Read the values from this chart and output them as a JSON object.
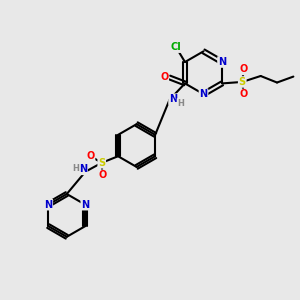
{
  "bg_color": "#e8e8e8",
  "bond_color": "#000000",
  "bond_width": 1.5,
  "atom_colors": {
    "N": "#0000cc",
    "O": "#ff0000",
    "S": "#cccc00",
    "Cl": "#00aa00",
    "H": "#888888"
  },
  "font_size": 7.0,
  "font_size_small": 6.0
}
